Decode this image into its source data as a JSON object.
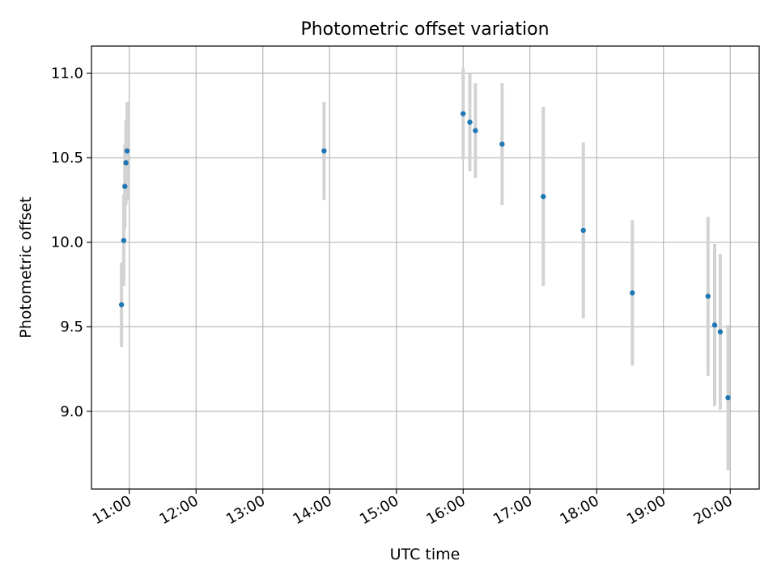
{
  "chart_data": {
    "type": "scatter",
    "title": "Photometric offset variation",
    "xlabel": "UTC time",
    "ylabel": "Photometric offset",
    "x_ticks": [
      "11:00",
      "12:00",
      "13:00",
      "14:00",
      "15:00",
      "16:00",
      "17:00",
      "18:00",
      "19:00",
      "20:00"
    ],
    "y_ticks": [
      "9.0",
      "9.5",
      "10.0",
      "10.5",
      "11.0"
    ],
    "xlim": [
      "10:26",
      "20:26"
    ],
    "ylim": [
      8.54,
      11.16
    ],
    "grid": true,
    "colors": {
      "points": "#1f77b4",
      "errorbars": "#d3d3d3",
      "grid": "#b0b0b0",
      "axes": "#000000"
    },
    "points": [
      {
        "x": "10:53",
        "y": 9.63,
        "err": 0.25
      },
      {
        "x": "10:55",
        "y": 10.01,
        "err": 0.27
      },
      {
        "x": "10:56",
        "y": 10.33,
        "err": 0.25
      },
      {
        "x": "10:57",
        "y": 10.47,
        "err": 0.25
      },
      {
        "x": "10:58",
        "y": 10.54,
        "err": 0.29
      },
      {
        "x": "13:55",
        "y": 10.54,
        "err": 0.29
      },
      {
        "x": "16:00",
        "y": 10.76,
        "err": 0.27
      },
      {
        "x": "16:06",
        "y": 10.71,
        "err": 0.29
      },
      {
        "x": "16:11",
        "y": 10.66,
        "err": 0.28
      },
      {
        "x": "16:35",
        "y": 10.58,
        "err": 0.36
      },
      {
        "x": "17:12",
        "y": 10.27,
        "err": 0.53
      },
      {
        "x": "17:48",
        "y": 10.07,
        "err": 0.52
      },
      {
        "x": "18:32",
        "y": 9.7,
        "err": 0.43
      },
      {
        "x": "19:40",
        "y": 9.68,
        "err": 0.47
      },
      {
        "x": "19:46",
        "y": 9.51,
        "err": 0.48
      },
      {
        "x": "19:51",
        "y": 9.47,
        "err": 0.46
      },
      {
        "x": "19:58",
        "y": 9.08,
        "err": 0.43
      }
    ]
  }
}
